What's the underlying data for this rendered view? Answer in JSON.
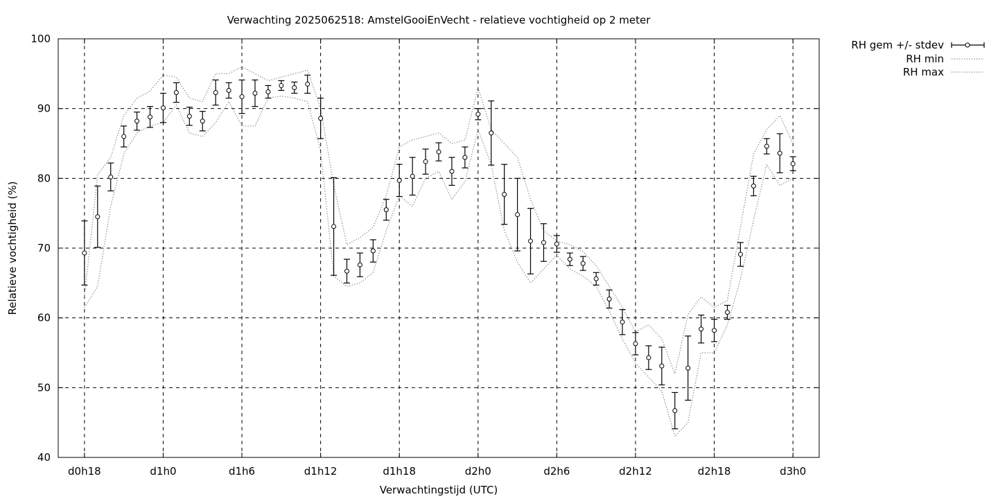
{
  "chart_data": {
    "type": "line",
    "title": "Verwachting 2025062518: AmstelGooiEnVecht - relatieve vochtigheid op 2 meter",
    "xlabel": "Verwachtingstijd (UTC)",
    "ylabel": "Relatieve vochtigheid (%)",
    "ylim": [
      40,
      100
    ],
    "yticks": [
      40,
      50,
      60,
      70,
      80,
      90,
      100
    ],
    "xlim": [
      -2,
      56
    ],
    "xticks": [
      {
        "x": 0,
        "label": "d0h18"
      },
      {
        "x": 6,
        "label": "d1h0"
      },
      {
        "x": 12,
        "label": "d1h6"
      },
      {
        "x": 18,
        "label": "d1h12"
      },
      {
        "x": 24,
        "label": "d1h18"
      },
      {
        "x": 30,
        "label": "d2h0"
      },
      {
        "x": 36,
        "label": "d2h6"
      },
      {
        "x": 42,
        "label": "d2h12"
      },
      {
        "x": 48,
        "label": "d2h18"
      },
      {
        "x": 54,
        "label": "d3h0"
      }
    ],
    "grid": true,
    "legend_position": "outside-top-right",
    "legend": [
      "RH gem +/- stdev",
      "RH min",
      "RH max"
    ],
    "x": [
      0,
      1,
      2,
      3,
      4,
      5,
      6,
      7,
      8,
      9,
      10,
      11,
      12,
      13,
      14,
      15,
      16,
      17,
      18,
      19,
      20,
      21,
      22,
      23,
      24,
      25,
      26,
      27,
      28,
      29,
      30,
      31,
      32,
      33,
      34,
      35,
      36,
      37,
      38,
      39,
      40,
      41,
      42,
      43,
      44,
      45,
      46,
      47,
      48,
      49,
      50,
      51,
      52,
      53,
      54
    ],
    "series": [
      {
        "name": "RH gem +/- stdev",
        "style": "errorbars",
        "values": [
          69.3,
          74.5,
          80.2,
          86.0,
          88.2,
          88.8,
          90.1,
          92.3,
          88.9,
          88.2,
          92.3,
          92.6,
          91.7,
          92.2,
          92.4,
          93.3,
          93.0,
          93.5,
          88.6,
          73.1,
          66.7,
          67.6,
          69.6,
          75.5,
          79.7,
          80.3,
          82.4,
          83.8,
          81.0,
          83.0,
          89.2,
          86.5,
          77.7,
          74.8,
          71.0,
          70.8,
          70.6,
          68.4,
          67.8,
          65.6,
          62.7,
          59.4,
          56.3,
          54.3,
          53.1,
          46.7,
          52.8,
          58.4,
          58.2,
          60.8,
          69.1,
          78.9,
          84.6,
          83.6,
          82.1
        ],
        "stdev": [
          4.6,
          4.4,
          2.0,
          1.5,
          1.3,
          1.5,
          2.1,
          1.4,
          1.3,
          1.4,
          1.8,
          1.1,
          2.4,
          1.9,
          0.9,
          0.7,
          0.8,
          1.3,
          2.9,
          7.0,
          1.7,
          1.7,
          1.6,
          1.5,
          2.3,
          2.7,
          1.8,
          1.3,
          2.0,
          1.5,
          0.8,
          4.6,
          4.3,
          5.2,
          4.7,
          2.7,
          1.2,
          0.9,
          1.0,
          0.9,
          1.3,
          1.8,
          1.6,
          1.7,
          2.7,
          2.6,
          4.6,
          2.0,
          1.6,
          1.0,
          1.7,
          1.4,
          1.1,
          2.8,
          1.0
        ]
      },
      {
        "name": "RH min",
        "style": "dotted",
        "values": [
          61.5,
          64.5,
          76.0,
          83.5,
          86.5,
          87.5,
          88.0,
          90.5,
          86.5,
          86.0,
          88.0,
          91.0,
          87.5,
          87.5,
          91.5,
          91.8,
          91.5,
          91.0,
          84.0,
          66.0,
          64.5,
          65.0,
          66.5,
          72.5,
          77.5,
          76.0,
          80.0,
          81.0,
          77.0,
          79.5,
          87.0,
          82.0,
          72.5,
          68.0,
          65.0,
          67.0,
          69.0,
          67.0,
          66.0,
          64.5,
          61.0,
          57.0,
          53.5,
          51.5,
          49.5,
          43.0,
          45.0,
          55.0,
          55.0,
          59.0,
          65.5,
          74.0,
          82.0,
          79.0,
          80.0
        ]
      },
      {
        "name": "RH max",
        "style": "dotted",
        "values": [
          63.0,
          80.5,
          83.0,
          89.0,
          91.5,
          92.5,
          94.8,
          94.5,
          91.5,
          91.0,
          95.0,
          95.0,
          96.0,
          95.0,
          94.0,
          94.5,
          95.0,
          95.5,
          90.0,
          79.0,
          70.5,
          71.5,
          73.0,
          77.5,
          84.5,
          85.5,
          86.0,
          86.5,
          85.0,
          85.5,
          93.0,
          87.0,
          85.0,
          83.0,
          77.0,
          72.5,
          71.0,
          70.5,
          69.5,
          67.5,
          64.5,
          61.5,
          58.0,
          59.0,
          57.0,
          52.0,
          60.5,
          63.0,
          61.5,
          62.5,
          73.0,
          83.5,
          87.0,
          89.0,
          85.0
        ]
      }
    ]
  }
}
